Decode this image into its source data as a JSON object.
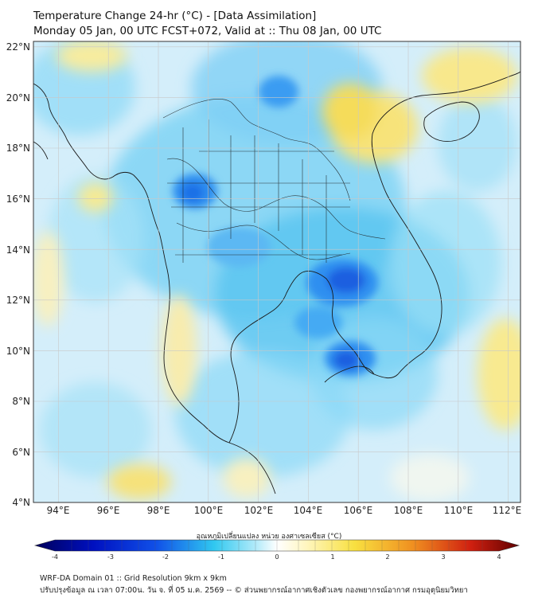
{
  "header": {
    "title_line1": "Temperature Change 24-hr (°C) - [Data Assimilation]",
    "title_line2": "Monday 05 Jan, 00 UTC FCST+072, Valid at :: Thu 08 Jan, 00 UTC"
  },
  "map": {
    "lat_labels": [
      "22°N",
      "20°N",
      "18°N",
      "16°N",
      "14°N",
      "12°N",
      "10°N",
      "8°N",
      "6°N",
      "4°N"
    ],
    "lon_labels": [
      "94°E",
      "96°E",
      "98°E",
      "100°E",
      "102°E",
      "104°E",
      "106°E",
      "108°E",
      "110°E",
      "112°E"
    ],
    "lat_range": [
      4,
      22
    ],
    "lon_range": [
      93,
      112.5
    ],
    "field": "24-hr temperature change",
    "dominant_tone": "cooling (light to medium blue) over most of mainland Southeast Asia",
    "strongest_cooling_areas": [
      "central Cambodia",
      "southern Vietnam / Mekong delta",
      "western Thailand near 16°N 99.5°E",
      "northern Laos near 20°N 103°E"
    ],
    "warming_areas": [
      "Gulf of Tonkin / northern Vietnam coast",
      "western Andaman Sea coast",
      "southwest corner near 4.5°N 97°E",
      "South China Sea east of 111°E"
    ]
  },
  "colorbar": {
    "title": "อุณหภูมิเปลี่ยนแปลง หน่วย องศาเซลเซียส (°C)",
    "tick_labels": [
      "-4",
      "-3",
      "-2",
      "-1",
      "0",
      "1",
      "2",
      "3",
      "4"
    ],
    "range": [
      -4,
      4
    ],
    "colors": {
      "min": "#00005a",
      "blue": "#1040e0",
      "cyan": "#30c8f0",
      "zero": "#ffffff",
      "yellow": "#f8e040",
      "orange": "#f08020",
      "max": "#600000"
    }
  },
  "footer": {
    "line1": "WRF-DA Domain 01 :: Grid Resolution 9km x 9km",
    "line2": "ปรับปรุงข้อมูล ณ เวลา 07:00น. วัน จ. ที่ 05 ม.ค. 2569 -- © ส่วนพยากรณ์อากาศเชิงตัวเลข กองพยากรณ์อากาศ กรมอุตุนิยมวิทยา"
  }
}
